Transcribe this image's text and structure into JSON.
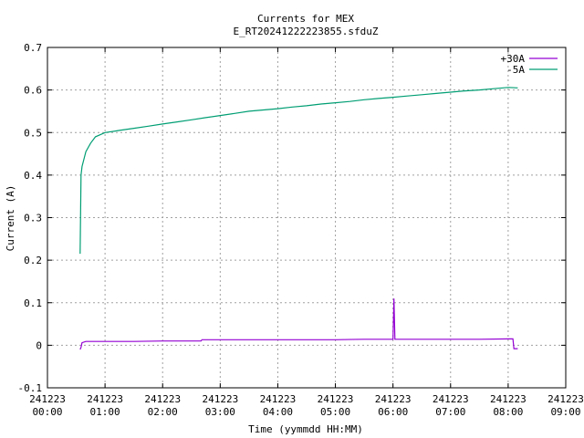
{
  "chart_data": {
    "type": "line",
    "title": "Currents for MEX",
    "subtitle": "E_RT20241222223855.sfduZ",
    "xlabel": "Time (yymmdd HH:MM)",
    "ylabel": "Current (A)",
    "ylim": [
      -0.1,
      0.7
    ],
    "xlim": [
      "2024-12-23 00:00",
      "2024-12-23 09:00"
    ],
    "yticks": [
      "-0.1",
      "0",
      "0.1",
      "0.2",
      "0.3",
      "0.4",
      "0.5",
      "0.6",
      "0.7"
    ],
    "xticks": [
      {
        "date": "241223",
        "time": "00:00"
      },
      {
        "date": "241223",
        "time": "01:00"
      },
      {
        "date": "241223",
        "time": "02:00"
      },
      {
        "date": "241223",
        "time": "03:00"
      },
      {
        "date": "241223",
        "time": "04:00"
      },
      {
        "date": "241223",
        "time": "05:00"
      },
      {
        "date": "241223",
        "time": "06:00"
      },
      {
        "date": "241223",
        "time": "07:00"
      },
      {
        "date": "241223",
        "time": "08:00"
      },
      {
        "date": "241223",
        "time": "09:00"
      }
    ],
    "grid": true,
    "legend_position": "top-right",
    "series": [
      {
        "name": "+30A",
        "color": "#9400d3",
        "x": [
          "00:34",
          "00:35",
          "00:36",
          "00:40",
          "01:00",
          "01:30",
          "02:00",
          "02:30",
          "02:40",
          "02:41",
          "03:00",
          "03:30",
          "04:00",
          "04:30",
          "05:00",
          "05:30",
          "06:00",
          "06:01",
          "06:02",
          "06:03",
          "06:30",
          "07:00",
          "07:30",
          "08:00",
          "08:05",
          "08:06",
          "08:10"
        ],
        "y": [
          -0.01,
          -0.005,
          0.006,
          0.009,
          0.009,
          0.009,
          0.01,
          0.01,
          0.01,
          0.013,
          0.013,
          0.013,
          0.013,
          0.013,
          0.013,
          0.014,
          0.014,
          0.11,
          0.014,
          0.014,
          0.014,
          0.014,
          0.014,
          0.015,
          0.015,
          -0.008,
          -0.008
        ]
      },
      {
        "name": "-5A",
        "color": "#009e73",
        "x": [
          "00:34",
          "00:35",
          "00:36",
          "00:40",
          "00:45",
          "00:50",
          "01:00",
          "01:15",
          "01:30",
          "01:45",
          "02:00",
          "02:15",
          "02:30",
          "02:45",
          "03:00",
          "03:15",
          "03:30",
          "03:45",
          "04:00",
          "04:15",
          "04:30",
          "04:45",
          "05:00",
          "05:15",
          "05:30",
          "05:45",
          "06:00",
          "06:15",
          "06:30",
          "06:45",
          "07:00",
          "07:15",
          "07:30",
          "07:45",
          "08:00",
          "08:10"
        ],
        "y": [
          0.215,
          0.4,
          0.42,
          0.455,
          0.475,
          0.49,
          0.5,
          0.505,
          0.51,
          0.515,
          0.52,
          0.525,
          0.53,
          0.535,
          0.54,
          0.545,
          0.55,
          0.553,
          0.556,
          0.56,
          0.563,
          0.567,
          0.57,
          0.573,
          0.577,
          0.58,
          0.583,
          0.586,
          0.589,
          0.592,
          0.595,
          0.598,
          0.6,
          0.603,
          0.606,
          0.605
        ]
      }
    ]
  }
}
